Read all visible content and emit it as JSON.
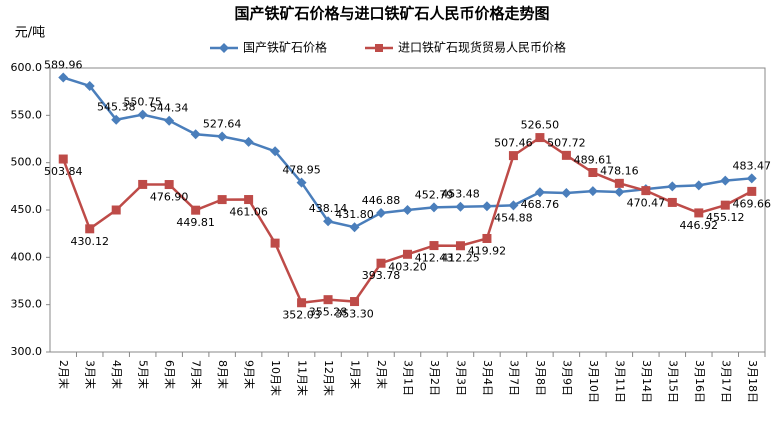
{
  "chart_data": {
    "type": "line",
    "title": "国产铁矿石价格与进口铁矿石人民币价格走势图",
    "y_label": "元/吨",
    "categories": [
      "2月末",
      "3月末",
      "4月末",
      "5月末",
      "6月末",
      "7月末",
      "8月末",
      "9月末",
      "10月末",
      "11月末",
      "12月末",
      "1月末",
      "2月末",
      "3月1日",
      "3月2日",
      "3月3日",
      "3月4日",
      "3月7日",
      "3月8日",
      "3月9日",
      "3月10日",
      "3月11日",
      "3月14日",
      "3月15日",
      "3月16日",
      "3月17日",
      "3月18日"
    ],
    "series": [
      {
        "name": "国产铁矿石价格",
        "color": "#4a7ebb",
        "marker": "diamond",
        "values": [
          589.96,
          581,
          545.38,
          550.75,
          544.34,
          530,
          527.64,
          522,
          512,
          478.95,
          438.14,
          431.8,
          446.88,
          450,
          452.79,
          453.48,
          454,
          454.88,
          468.76,
          468,
          470,
          469,
          472,
          475,
          476,
          481,
          483.47
        ],
        "value_labels": [
          "589.96",
          null,
          "545.38",
          "550.75",
          "544.34",
          null,
          "527.64",
          null,
          null,
          "478.95",
          "438.14",
          "431.80",
          "446.88",
          null,
          "452.79",
          "453.48",
          null,
          "454.88",
          "468.76",
          null,
          null,
          null,
          null,
          null,
          null,
          null,
          "483.47"
        ]
      },
      {
        "name": "进口铁矿石现货贸易人民币价格",
        "color": "#be4b48",
        "marker": "square",
        "values": [
          503.84,
          430.12,
          450,
          477,
          476.9,
          449.81,
          461,
          461.06,
          415,
          352.03,
          355.28,
          353.3,
          393.78,
          403.2,
          412.43,
          412.25,
          419.92,
          507.46,
          526.5,
          507.72,
          489.61,
          478.16,
          470.47,
          458,
          446.92,
          455.12,
          469.66
        ],
        "value_labels": [
          "503.84",
          "430.12",
          null,
          null,
          "476.90",
          "449.81",
          null,
          "461.06",
          null,
          "352.03",
          "355.28",
          "353.30",
          "393.78",
          "403.20",
          "412.43",
          "412.25",
          "419.92",
          "507.46",
          "526.50",
          "507.72",
          "489.61",
          "478.16",
          "470.47",
          null,
          "446.92",
          "455.12",
          "469.66"
        ]
      }
    ],
    "ylim": [
      300,
      600
    ],
    "yticks": [
      {
        "value": 300,
        "label": "300.0"
      },
      {
        "value": 350,
        "label": "350.0"
      },
      {
        "value": 400,
        "label": "400.0"
      },
      {
        "value": 450,
        "label": "450.0"
      },
      {
        "value": 500,
        "label": "500.0"
      },
      {
        "value": 550,
        "label": "550.0"
      },
      {
        "value": 600,
        "label": "600.0"
      }
    ],
    "legend": "top"
  }
}
